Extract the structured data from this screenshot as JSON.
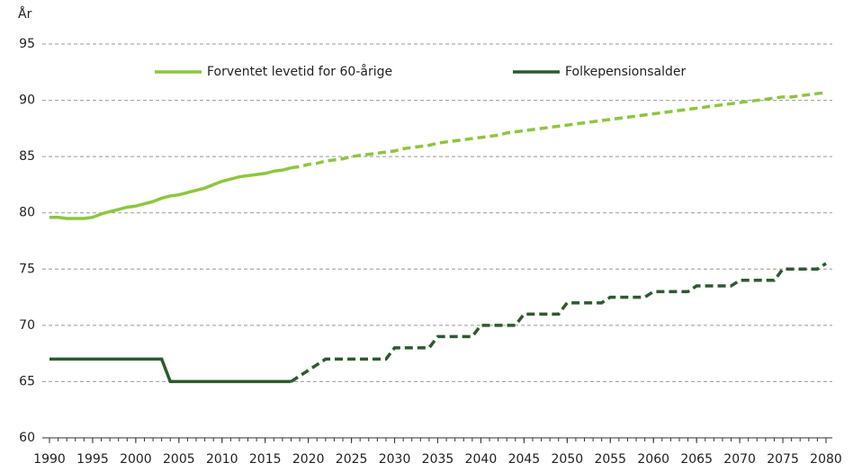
{
  "chart_data": {
    "type": "line",
    "y_label": "År",
    "x": [
      1990,
      1991,
      1992,
      1993,
      1994,
      1995,
      1996,
      1997,
      1998,
      1999,
      2000,
      2001,
      2002,
      2003,
      2004,
      2005,
      2006,
      2007,
      2008,
      2009,
      2010,
      2011,
      2012,
      2013,
      2014,
      2015,
      2016,
      2017,
      2018,
      2019,
      2020,
      2021,
      2022,
      2023,
      2024,
      2025,
      2026,
      2027,
      2028,
      2029,
      2030,
      2031,
      2032,
      2033,
      2034,
      2035,
      2036,
      2037,
      2038,
      2039,
      2040,
      2041,
      2042,
      2043,
      2044,
      2045,
      2046,
      2047,
      2048,
      2049,
      2050,
      2051,
      2052,
      2053,
      2054,
      2055,
      2056,
      2057,
      2058,
      2059,
      2060,
      2061,
      2062,
      2063,
      2064,
      2065,
      2066,
      2067,
      2068,
      2069,
      2070,
      2071,
      2072,
      2073,
      2074,
      2075,
      2076,
      2077,
      2078,
      2079,
      2080
    ],
    "series": [
      {
        "name": "Forventet levetid for 60-årige",
        "color": "#8dc63f",
        "projection_from": 2018,
        "values": [
          79.6,
          79.6,
          79.5,
          79.5,
          79.5,
          79.6,
          79.9,
          80.1,
          80.3,
          80.5,
          80.6,
          80.8,
          81.0,
          81.3,
          81.5,
          81.6,
          81.8,
          82.0,
          82.2,
          82.5,
          82.8,
          83.0,
          83.2,
          83.3,
          83.4,
          83.5,
          83.7,
          83.8,
          84.0,
          84.1,
          84.3,
          84.4,
          84.6,
          84.7,
          84.8,
          85.0,
          85.1,
          85.2,
          85.3,
          85.4,
          85.5,
          85.7,
          85.8,
          85.9,
          86.0,
          86.2,
          86.3,
          86.4,
          86.5,
          86.6,
          86.7,
          86.8,
          86.9,
          87.1,
          87.2,
          87.3,
          87.4,
          87.5,
          87.6,
          87.7,
          87.8,
          87.9,
          88.0,
          88.1,
          88.2,
          88.3,
          88.4,
          88.5,
          88.6,
          88.7,
          88.8,
          88.9,
          89.0,
          89.1,
          89.2,
          89.3,
          89.4,
          89.5,
          89.6,
          89.7,
          89.8,
          89.9,
          90.0,
          90.1,
          90.2,
          90.3,
          90.3,
          90.4,
          90.5,
          90.6,
          90.7
        ]
      },
      {
        "name": "Folkepensionsalder",
        "color": "#2e5a2e",
        "projection_from": 2018,
        "values": [
          67,
          67,
          67,
          67,
          67,
          67,
          67,
          67,
          67,
          67,
          67,
          67,
          67,
          67,
          65,
          65,
          65,
          65,
          65,
          65,
          65,
          65,
          65,
          65,
          65,
          65,
          65,
          65,
          65,
          65.5,
          66,
          66.5,
          67,
          67,
          67,
          67,
          67,
          67,
          67,
          67,
          68,
          68,
          68,
          68,
          68,
          69,
          69,
          69,
          69,
          69,
          70,
          70,
          70,
          70,
          70,
          71,
          71,
          71,
          71,
          71,
          72,
          72,
          72,
          72,
          72,
          72.5,
          72.5,
          72.5,
          72.5,
          72.5,
          73,
          73,
          73,
          73,
          73,
          73.5,
          73.5,
          73.5,
          73.5,
          73.5,
          74,
          74,
          74,
          74,
          74,
          75,
          75,
          75,
          75,
          75,
          75.5
        ]
      }
    ],
    "xlim": [
      1990,
      2080
    ],
    "xticks": [
      1990,
      1995,
      2000,
      2005,
      2010,
      2015,
      2020,
      2025,
      2030,
      2035,
      2040,
      2045,
      2050,
      2055,
      2060,
      2065,
      2070,
      2075,
      2080
    ],
    "ylim": [
      60,
      95
    ],
    "yticks": [
      60,
      65,
      70,
      75,
      80,
      85,
      90,
      95
    ],
    "grid": true
  }
}
